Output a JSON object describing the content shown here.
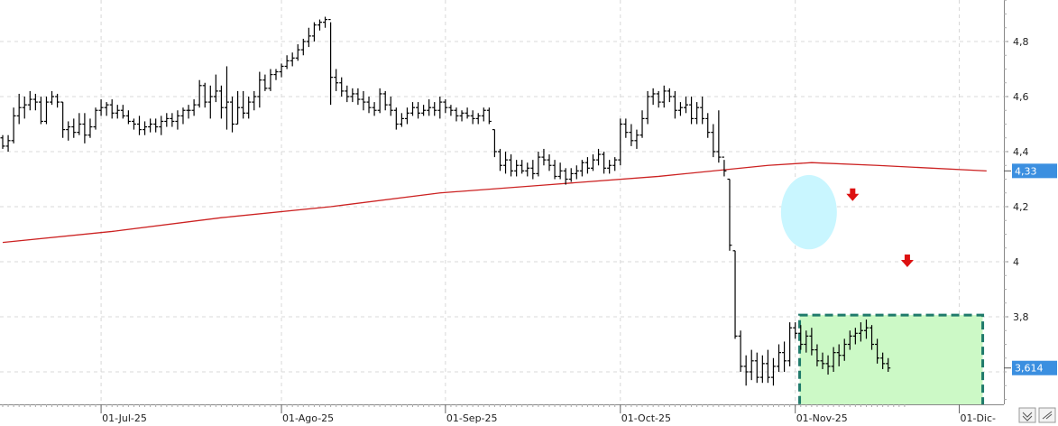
{
  "chart_data": {
    "type": "ohlc",
    "title": "",
    "x_ticks": [
      {
        "label": "01-Jul-25",
        "bar": 18
      },
      {
        "label": "01-Ago-25",
        "bar": 51
      },
      {
        "label": "01-Sep-25",
        "bar": 81
      },
      {
        "label": "01-Oct-25",
        "bar": 113
      },
      {
        "label": "01-Nov-25",
        "bar": 145
      },
      {
        "label": "01-Dic-",
        "bar": 175
      }
    ],
    "y_ticks": [
      {
        "label": "3,8",
        "value": 3.8
      },
      {
        "label": "4",
        "value": 4.0
      },
      {
        "label": "4,2",
        "value": 4.2
      },
      {
        "label": "4,4",
        "value": 4.4
      },
      {
        "label": "4,6",
        "value": 4.6
      },
      {
        "label": "4,8",
        "value": 4.8
      }
    ],
    "ylim": [
      3.45,
      4.96
    ],
    "grid": true,
    "price_tags": [
      {
        "label": "4,33",
        "value": 4.33,
        "color": "#3b8fe0"
      },
      {
        "label": "3,614",
        "value": 3.614,
        "color": "#3b8fe0"
      }
    ],
    "moving_average": {
      "color": "#cc2222",
      "points": [
        [
          0,
          4.07
        ],
        [
          20,
          4.11
        ],
        [
          40,
          4.16
        ],
        [
          60,
          4.2
        ],
        [
          80,
          4.25
        ],
        [
          100,
          4.28
        ],
        [
          120,
          4.31
        ],
        [
          140,
          4.35
        ],
        [
          148,
          4.36
        ],
        [
          160,
          4.35
        ],
        [
          180,
          4.33
        ]
      ]
    },
    "series": [
      {
        "color": "#000000",
        "ohlc": [
          [
            4.45,
            4.46,
            4.41,
            4.42
          ],
          [
            4.42,
            4.46,
            4.4,
            4.44
          ],
          [
            4.44,
            4.56,
            4.43,
            4.53
          ],
          [
            4.53,
            4.61,
            4.5,
            4.56
          ],
          [
            4.56,
            4.6,
            4.52,
            4.57
          ],
          [
            4.57,
            4.62,
            4.55,
            4.59
          ],
          [
            4.59,
            4.61,
            4.55,
            4.58
          ],
          [
            4.58,
            4.6,
            4.5,
            4.51
          ],
          [
            4.51,
            4.6,
            4.5,
            4.58
          ],
          [
            4.58,
            4.62,
            4.57,
            4.6
          ],
          [
            4.6,
            4.61,
            4.56,
            4.58
          ],
          [
            4.58,
            4.58,
            4.45,
            4.48
          ],
          [
            4.48,
            4.51,
            4.44,
            4.49
          ],
          [
            4.49,
            4.52,
            4.45,
            4.47
          ],
          [
            4.47,
            4.54,
            4.46,
            4.5
          ],
          [
            4.5,
            4.54,
            4.43,
            4.46
          ],
          [
            4.46,
            4.52,
            4.45,
            4.49
          ],
          [
            4.49,
            4.56,
            4.48,
            4.55
          ],
          [
            4.55,
            4.59,
            4.53,
            4.56
          ],
          [
            4.56,
            4.58,
            4.53,
            4.57
          ],
          [
            4.57,
            4.59,
            4.52,
            4.54
          ],
          [
            4.54,
            4.57,
            4.52,
            4.55
          ],
          [
            4.55,
            4.57,
            4.52,
            4.53
          ],
          [
            4.53,
            4.55,
            4.5,
            4.51
          ],
          [
            4.51,
            4.52,
            4.48,
            4.5
          ],
          [
            4.5,
            4.53,
            4.46,
            4.48
          ],
          [
            4.48,
            4.51,
            4.46,
            4.49
          ],
          [
            4.49,
            4.52,
            4.47,
            4.5
          ],
          [
            4.5,
            4.52,
            4.47,
            4.49
          ],
          [
            4.49,
            4.53,
            4.46,
            4.51
          ],
          [
            4.51,
            4.54,
            4.49,
            4.52
          ],
          [
            4.52,
            4.54,
            4.49,
            4.51
          ],
          [
            4.51,
            4.55,
            4.48,
            4.53
          ],
          [
            4.53,
            4.56,
            4.5,
            4.55
          ],
          [
            4.55,
            4.57,
            4.52,
            4.55
          ],
          [
            4.55,
            4.59,
            4.53,
            4.57
          ],
          [
            4.57,
            4.66,
            4.56,
            4.64
          ],
          [
            4.64,
            4.65,
            4.56,
            4.58
          ],
          [
            4.58,
            4.64,
            4.52,
            4.6
          ],
          [
            4.6,
            4.68,
            4.58,
            4.62
          ],
          [
            4.62,
            4.64,
            4.52,
            4.56
          ],
          [
            4.56,
            4.71,
            4.48,
            4.58
          ],
          [
            4.58,
            4.6,
            4.47,
            4.5
          ],
          [
            4.5,
            4.62,
            4.5,
            4.56
          ],
          [
            4.56,
            4.62,
            4.52,
            4.54
          ],
          [
            4.54,
            4.6,
            4.52,
            4.58
          ],
          [
            4.58,
            4.62,
            4.55,
            4.6
          ],
          [
            4.6,
            4.69,
            4.56,
            4.66
          ],
          [
            4.66,
            4.68,
            4.62,
            4.63
          ],
          [
            4.63,
            4.7,
            4.62,
            4.68
          ],
          [
            4.68,
            4.7,
            4.66,
            4.69
          ],
          [
            4.69,
            4.72,
            4.67,
            4.71
          ],
          [
            4.71,
            4.75,
            4.7,
            4.73
          ],
          [
            4.73,
            4.76,
            4.71,
            4.74
          ],
          [
            4.74,
            4.79,
            4.73,
            4.77
          ],
          [
            4.77,
            4.81,
            4.75,
            4.8
          ],
          [
            4.8,
            4.85,
            4.78,
            4.82
          ],
          [
            4.82,
            4.87,
            4.8,
            4.86
          ],
          [
            4.86,
            4.88,
            4.84,
            4.87
          ],
          [
            4.87,
            4.89,
            4.85,
            4.88
          ],
          [
            4.88,
            4.87,
            4.57,
            4.67
          ],
          [
            4.67,
            4.7,
            4.62,
            4.65
          ],
          [
            4.65,
            4.67,
            4.6,
            4.62
          ],
          [
            4.62,
            4.64,
            4.58,
            4.6
          ],
          [
            4.6,
            4.63,
            4.58,
            4.61
          ],
          [
            4.61,
            4.63,
            4.57,
            4.59
          ],
          [
            4.59,
            4.62,
            4.55,
            4.58
          ],
          [
            4.58,
            4.6,
            4.54,
            4.56
          ],
          [
            4.56,
            4.58,
            4.53,
            4.55
          ],
          [
            4.55,
            4.63,
            4.54,
            4.61
          ],
          [
            4.61,
            4.62,
            4.55,
            4.57
          ],
          [
            4.57,
            4.6,
            4.53,
            4.55
          ],
          [
            4.55,
            4.56,
            4.48,
            4.5
          ],
          [
            4.5,
            4.54,
            4.49,
            4.52
          ],
          [
            4.52,
            4.56,
            4.5,
            4.54
          ],
          [
            4.54,
            4.58,
            4.53,
            4.56
          ],
          [
            4.56,
            4.58,
            4.52,
            4.54
          ],
          [
            4.54,
            4.57,
            4.53,
            4.55
          ],
          [
            4.55,
            4.59,
            4.53,
            4.56
          ],
          [
            4.56,
            4.58,
            4.53,
            4.55
          ],
          [
            4.55,
            4.6,
            4.52,
            4.58
          ],
          [
            4.58,
            4.59,
            4.54,
            4.56
          ],
          [
            4.56,
            4.57,
            4.53,
            4.55
          ],
          [
            4.55,
            4.56,
            4.51,
            4.53
          ],
          [
            4.53,
            4.55,
            4.51,
            4.54
          ],
          [
            4.54,
            4.56,
            4.52,
            4.53
          ],
          [
            4.53,
            4.55,
            4.5,
            4.52
          ],
          [
            4.52,
            4.54,
            4.5,
            4.53
          ],
          [
            4.53,
            4.56,
            4.51,
            4.55
          ],
          [
            4.55,
            4.56,
            4.5,
            4.51
          ],
          [
            4.48,
            4.48,
            4.38,
            4.4
          ],
          [
            4.4,
            4.41,
            4.33,
            4.35
          ],
          [
            4.35,
            4.4,
            4.32,
            4.37
          ],
          [
            4.37,
            4.39,
            4.31,
            4.33
          ],
          [
            4.33,
            4.37,
            4.31,
            4.35
          ],
          [
            4.35,
            4.37,
            4.32,
            4.33
          ],
          [
            4.33,
            4.36,
            4.31,
            4.34
          ],
          [
            4.34,
            4.37,
            4.3,
            4.32
          ],
          [
            4.32,
            4.4,
            4.31,
            4.38
          ],
          [
            4.38,
            4.41,
            4.35,
            4.37
          ],
          [
            4.37,
            4.39,
            4.33,
            4.35
          ],
          [
            4.35,
            4.37,
            4.3,
            4.31
          ],
          [
            4.31,
            4.36,
            4.3,
            4.33
          ],
          [
            4.33,
            4.34,
            4.28,
            4.3
          ],
          [
            4.3,
            4.34,
            4.29,
            4.32
          ],
          [
            4.32,
            4.35,
            4.3,
            4.33
          ],
          [
            4.33,
            4.37,
            4.31,
            4.36
          ],
          [
            4.36,
            4.38,
            4.32,
            4.34
          ],
          [
            4.34,
            4.39,
            4.33,
            4.37
          ],
          [
            4.37,
            4.41,
            4.35,
            4.39
          ],
          [
            4.39,
            4.4,
            4.32,
            4.34
          ],
          [
            4.34,
            4.37,
            4.32,
            4.35
          ],
          [
            4.35,
            4.38,
            4.33,
            4.37
          ],
          [
            4.37,
            4.52,
            4.35,
            4.5
          ],
          [
            4.5,
            4.52,
            4.45,
            4.47
          ],
          [
            4.47,
            4.5,
            4.42,
            4.44
          ],
          [
            4.44,
            4.48,
            4.41,
            4.46
          ],
          [
            4.46,
            4.55,
            4.45,
            4.52
          ],
          [
            4.52,
            4.62,
            4.5,
            4.6
          ],
          [
            4.6,
            4.63,
            4.57,
            4.61
          ],
          [
            4.61,
            4.62,
            4.56,
            4.58
          ],
          [
            4.58,
            4.64,
            4.56,
            4.62
          ],
          [
            4.62,
            4.63,
            4.58,
            4.6
          ],
          [
            4.6,
            4.62,
            4.52,
            4.55
          ],
          [
            4.55,
            4.58,
            4.53,
            4.56
          ],
          [
            4.56,
            4.6,
            4.54,
            4.57
          ],
          [
            4.57,
            4.6,
            4.5,
            4.52
          ],
          [
            4.52,
            4.58,
            4.5,
            4.56
          ],
          [
            4.56,
            4.6,
            4.5,
            4.52
          ],
          [
            4.52,
            4.54,
            4.45,
            4.47
          ],
          [
            4.47,
            4.5,
            4.38,
            4.4
          ],
          [
            4.4,
            4.55,
            4.36,
            4.38
          ],
          [
            4.38,
            4.37,
            4.31,
            4.33
          ],
          [
            4.3,
            4.3,
            4.04,
            4.06
          ],
          [
            4.04,
            4.04,
            3.72,
            3.73
          ],
          [
            3.73,
            3.75,
            3.6,
            3.62
          ],
          [
            3.62,
            3.66,
            3.55,
            3.6
          ],
          [
            3.6,
            3.68,
            3.57,
            3.64
          ],
          [
            3.64,
            3.67,
            3.56,
            3.58
          ],
          [
            3.58,
            3.66,
            3.56,
            3.63
          ],
          [
            3.63,
            3.68,
            3.56,
            3.58
          ],
          [
            3.58,
            3.65,
            3.55,
            3.62
          ],
          [
            3.62,
            3.7,
            3.6,
            3.67
          ],
          [
            3.67,
            3.71,
            3.6,
            3.64
          ],
          [
            3.64,
            3.78,
            3.62,
            3.76
          ],
          [
            3.76,
            3.78,
            3.72,
            3.74
          ],
          [
            3.74,
            3.77,
            3.68,
            3.7
          ],
          [
            3.7,
            3.75,
            3.67,
            3.73
          ],
          [
            3.73,
            3.76,
            3.66,
            3.68
          ],
          [
            3.68,
            3.7,
            3.62,
            3.64
          ],
          [
            3.64,
            3.67,
            3.61,
            3.63
          ],
          [
            3.63,
            3.66,
            3.59,
            3.62
          ],
          [
            3.62,
            3.69,
            3.6,
            3.67
          ],
          [
            3.67,
            3.7,
            3.62,
            3.66
          ],
          [
            3.66,
            3.72,
            3.64,
            3.7
          ],
          [
            3.7,
            3.75,
            3.68,
            3.73
          ],
          [
            3.73,
            3.76,
            3.7,
            3.74
          ],
          [
            3.74,
            3.78,
            3.71,
            3.75
          ],
          [
            3.75,
            3.79,
            3.72,
            3.76
          ],
          [
            3.76,
            3.77,
            3.68,
            3.7
          ],
          [
            3.7,
            3.72,
            3.63,
            3.65
          ],
          [
            3.65,
            3.67,
            3.61,
            3.63
          ],
          [
            3.63,
            3.65,
            3.6,
            3.614
          ]
        ]
      }
    ],
    "annotations": [
      {
        "type": "ellipse",
        "bar": 147.5,
        "value": 4.18,
        "bars_wide": 6.2,
        "value_span": 0.27,
        "fill": "#c9f6ff"
      },
      {
        "type": "rect",
        "bar_start": 145.8,
        "bar_end": 179.3,
        "value_low": 3.52,
        "value_high": 3.78,
        "fill": "#ccf9c6",
        "stroke": "#1f7a6b"
      },
      {
        "type": "arrow-down",
        "bar": 155.5,
        "value": 4.24,
        "color": "#dd1111"
      },
      {
        "type": "arrow-down",
        "bar": 165.5,
        "value": 4.0,
        "color": "#dd1111"
      }
    ]
  }
}
